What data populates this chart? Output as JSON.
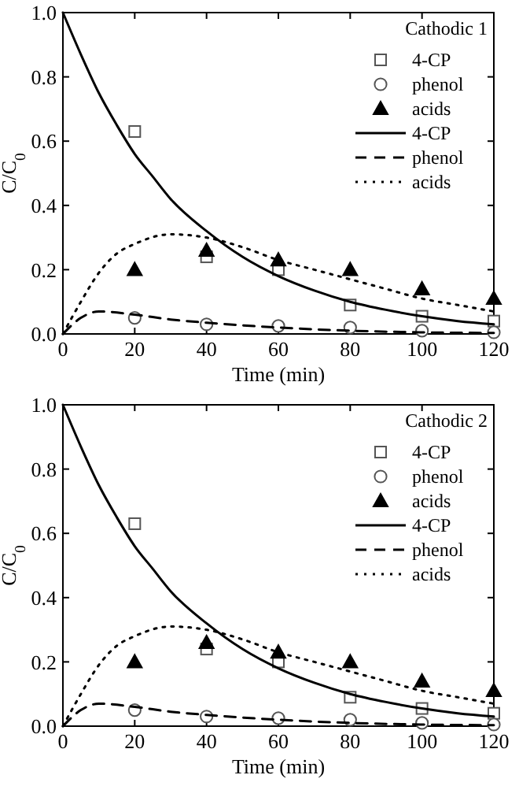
{
  "chart_data": [
    {
      "type": "line",
      "xlabel": "Time (min)",
      "ylabel": "C/C$_{0}$",
      "legend_title": "Cathodic 1",
      "legend": "top right",
      "xlim": [
        0,
        120
      ],
      "ylim": [
        0,
        1
      ],
      "xticks": [
        0,
        20,
        40,
        60,
        80,
        100,
        120
      ],
      "yticks": [
        {
          "value": 0,
          "label": "0.0"
        },
        {
          "value": 0.2,
          "label": "0.2"
        },
        {
          "value": 0.4,
          "label": "0.4"
        },
        {
          "value": 0.6,
          "label": "0.6"
        },
        {
          "value": 0.8,
          "label": "0.8"
        },
        {
          "value": 1,
          "label": "1.0"
        }
      ],
      "series": [
        {
          "name": "4-CP",
          "type": "scatter",
          "marker": "square",
          "color": "#555555",
          "x": [
            20,
            40,
            60,
            80,
            100,
            120
          ],
          "values": [
            0.63,
            0.24,
            0.2,
            0.09,
            0.055,
            0.04
          ]
        },
        {
          "name": "phenol",
          "type": "scatter",
          "marker": "circle",
          "color": "#555555",
          "x": [
            20,
            40,
            60,
            80,
            100,
            120
          ],
          "values": [
            0.05,
            0.03,
            0.025,
            0.02,
            0.01,
            0.005
          ]
        },
        {
          "name": "acids",
          "type": "scatter",
          "marker": "triangle",
          "color": "#000000",
          "x": [
            20,
            40,
            60,
            80,
            100,
            120
          ],
          "values": [
            0.2,
            0.26,
            0.23,
            0.2,
            0.14,
            0.11
          ]
        },
        {
          "name": "4-CP",
          "type": "line",
          "line_style": "solid",
          "color": "#000000",
          "x": [
            0,
            5,
            10,
            15,
            20,
            25,
            30,
            40,
            50,
            60,
            70,
            80,
            90,
            100,
            110,
            120
          ],
          "values": [
            1,
            0.87,
            0.75,
            0.65,
            0.56,
            0.49,
            0.42,
            0.32,
            0.24,
            0.18,
            0.135,
            0.1,
            0.075,
            0.055,
            0.04,
            0.03
          ]
        },
        {
          "name": "phenol",
          "type": "line",
          "line_style": "dashed",
          "color": "#000000",
          "x": [
            0,
            5,
            10,
            20,
            30,
            40,
            60,
            80,
            100,
            120
          ],
          "values": [
            0,
            0.05,
            0.07,
            0.06,
            0.045,
            0.035,
            0.02,
            0.01,
            0.005,
            0.003
          ]
        },
        {
          "name": "acids",
          "type": "line",
          "line_style": "dotted",
          "color": "#000000",
          "x": [
            0,
            5,
            10,
            15,
            20,
            30,
            40,
            50,
            60,
            70,
            80,
            90,
            100,
            110,
            120
          ],
          "values": [
            0,
            0.1,
            0.19,
            0.25,
            0.28,
            0.31,
            0.3,
            0.27,
            0.23,
            0.2,
            0.17,
            0.14,
            0.11,
            0.09,
            0.07
          ]
        }
      ]
    },
    {
      "type": "line",
      "xlabel": "Time (min)",
      "ylabel": "C/C$_{0}$",
      "legend_title": "Cathodic 2",
      "legend": "top right",
      "xlim": [
        0,
        120
      ],
      "ylim": [
        0,
        1
      ],
      "xticks": [
        0,
        20,
        40,
        60,
        80,
        100,
        120
      ],
      "yticks": [
        {
          "value": 0,
          "label": "0.0"
        },
        {
          "value": 0.2,
          "label": "0.2"
        },
        {
          "value": 0.4,
          "label": "0.4"
        },
        {
          "value": 0.6,
          "label": "0.6"
        },
        {
          "value": 0.8,
          "label": "0.8"
        },
        {
          "value": 1,
          "label": "1.0"
        }
      ],
      "series": [
        {
          "name": "4-CP",
          "type": "scatter",
          "marker": "square",
          "color": "#555555",
          "x": [
            20,
            40,
            60,
            80,
            100,
            120
          ],
          "values": [
            0.63,
            0.24,
            0.2,
            0.09,
            0.055,
            0.04
          ]
        },
        {
          "name": "phenol",
          "type": "scatter",
          "marker": "circle",
          "color": "#555555",
          "x": [
            20,
            40,
            60,
            80,
            100,
            120
          ],
          "values": [
            0.05,
            0.03,
            0.025,
            0.02,
            0.01,
            0.005
          ]
        },
        {
          "name": "acids",
          "type": "scatter",
          "marker": "triangle",
          "color": "#000000",
          "x": [
            20,
            40,
            60,
            80,
            100,
            120
          ],
          "values": [
            0.2,
            0.26,
            0.23,
            0.2,
            0.14,
            0.11
          ]
        },
        {
          "name": "4-CP",
          "type": "line",
          "line_style": "solid",
          "color": "#000000",
          "x": [
            0,
            5,
            10,
            15,
            20,
            25,
            30,
            40,
            50,
            60,
            70,
            80,
            90,
            100,
            110,
            120
          ],
          "values": [
            1,
            0.87,
            0.75,
            0.65,
            0.56,
            0.49,
            0.42,
            0.32,
            0.24,
            0.18,
            0.135,
            0.1,
            0.075,
            0.055,
            0.04,
            0.03
          ]
        },
        {
          "name": "phenol",
          "type": "line",
          "line_style": "dashed",
          "color": "#000000",
          "x": [
            0,
            5,
            10,
            20,
            30,
            40,
            60,
            80,
            100,
            120
          ],
          "values": [
            0,
            0.05,
            0.07,
            0.06,
            0.045,
            0.035,
            0.02,
            0.01,
            0.005,
            0.003
          ]
        },
        {
          "name": "acids",
          "type": "line",
          "line_style": "dotted",
          "color": "#000000",
          "x": [
            0,
            5,
            10,
            15,
            20,
            30,
            40,
            50,
            60,
            70,
            80,
            90,
            100,
            110,
            120
          ],
          "values": [
            0,
            0.1,
            0.19,
            0.25,
            0.28,
            0.31,
            0.3,
            0.27,
            0.23,
            0.2,
            0.17,
            0.14,
            0.11,
            0.09,
            0.07
          ]
        }
      ]
    }
  ]
}
